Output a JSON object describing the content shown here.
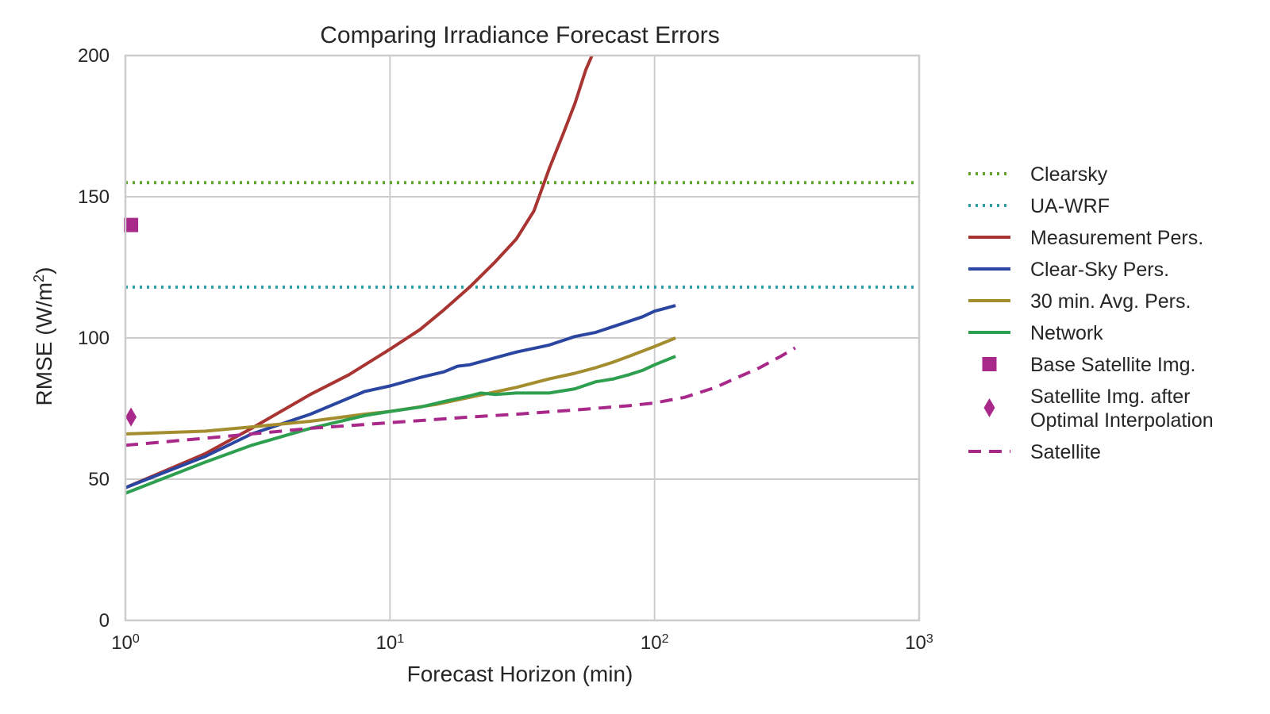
{
  "chart_data": {
    "type": "line",
    "title": "Comparing Irradiance Forecast Errors",
    "xlabel": "Forecast Horizon (min)",
    "ylabel": "RMSE (W/m",
    "ylabel_sup": "2",
    "ylabel_end": ")",
    "x_scale": "log",
    "xlim": [
      1,
      1000
    ],
    "ylim": [
      0,
      200
    ],
    "x_ticks": [
      {
        "base": "10",
        "exp": "0",
        "value": 1
      },
      {
        "base": "10",
        "exp": "1",
        "value": 10
      },
      {
        "base": "10",
        "exp": "2",
        "value": 100
      },
      {
        "base": "10",
        "exp": "3",
        "value": 1000
      }
    ],
    "y_ticks": [
      {
        "label": "0",
        "value": 0
      },
      {
        "label": "50",
        "value": 50
      },
      {
        "label": "100",
        "value": 100
      },
      {
        "label": "150",
        "value": 150
      },
      {
        "label": "200",
        "value": 200
      }
    ],
    "grid": true,
    "legend_position": "right, outside plot",
    "series": [
      {
        "name": "Clearsky",
        "style": "dotted",
        "color": "#5ea42e",
        "kind": "hline",
        "y": 155
      },
      {
        "name": "UA-WRF",
        "style": "dotted",
        "color": "#2aa0a6",
        "kind": "hline",
        "y": 118
      },
      {
        "name": "Measurement Pers.",
        "style": "solid",
        "color": "#a93532",
        "kind": "line",
        "x": [
          1,
          2,
          3,
          5,
          7,
          10,
          13,
          16,
          20,
          25,
          30,
          35,
          40,
          45,
          50,
          55,
          58
        ],
        "y": [
          47,
          59,
          68,
          80,
          87,
          96,
          103,
          110,
          118,
          127,
          135,
          145,
          160,
          172,
          183,
          195,
          200
        ]
      },
      {
        "name": "Clear-Sky Pers.",
        "style": "solid",
        "color": "#2b46a0",
        "kind": "line",
        "x": [
          1,
          2,
          3,
          5,
          8,
          10,
          13,
          16,
          18,
          20,
          25,
          30,
          40,
          50,
          60,
          75,
          90,
          100,
          110,
          120
        ],
        "y": [
          47,
          58,
          66,
          73,
          81,
          83,
          86,
          88,
          90,
          90.5,
          93,
          95,
          97.5,
          100.5,
          102,
          105,
          107.5,
          109.5,
          110.5,
          111.5
        ]
      },
      {
        "name": "30 min. Avg. Pers.",
        "style": "solid",
        "color": "#a38d2f",
        "kind": "line",
        "x": [
          1,
          2,
          3,
          5,
          8,
          10,
          15,
          20,
          30,
          40,
          50,
          60,
          70,
          80,
          100,
          120
        ],
        "y": [
          66,
          67,
          68.5,
          70.5,
          73,
          74,
          76.5,
          79,
          82.5,
          85.5,
          87.5,
          89.5,
          91.5,
          93.5,
          97,
          100
        ]
      },
      {
        "name": "Network",
        "style": "solid",
        "color": "#2e9f4f",
        "kind": "line",
        "x": [
          1,
          2,
          3,
          5,
          8,
          10,
          13,
          16,
          20,
          22,
          25,
          30,
          40,
          50,
          60,
          70,
          80,
          90,
          100,
          120
        ],
        "y": [
          45,
          56,
          62,
          68,
          72.5,
          74,
          75.5,
          77.5,
          79.5,
          80.5,
          80,
          80.5,
          80.5,
          82,
          84.5,
          85.5,
          87,
          88.5,
          90.5,
          93.5
        ]
      },
      {
        "name": "Base Satellite Img.",
        "style": "marker-square",
        "color": "#a8298a",
        "kind": "point",
        "x": [
          1.05
        ],
        "y": [
          140
        ]
      },
      {
        "name": "Satellite Img. after",
        "name_line2": "Optimal Interpolation",
        "style": "marker-diamond",
        "color": "#a8298a",
        "kind": "point",
        "x": [
          1.05
        ],
        "y": [
          72
        ]
      },
      {
        "name": "Satellite",
        "style": "dashed",
        "color": "#a8298a",
        "kind": "line",
        "x": [
          1,
          2,
          3,
          5,
          10,
          20,
          30,
          50,
          80,
          100,
          130,
          170,
          200,
          250,
          300,
          340
        ],
        "y": [
          62,
          64.5,
          66,
          68,
          70,
          72,
          73,
          74.5,
          76,
          77,
          79,
          82.5,
          85.5,
          89.5,
          93.5,
          96.5
        ]
      }
    ]
  }
}
